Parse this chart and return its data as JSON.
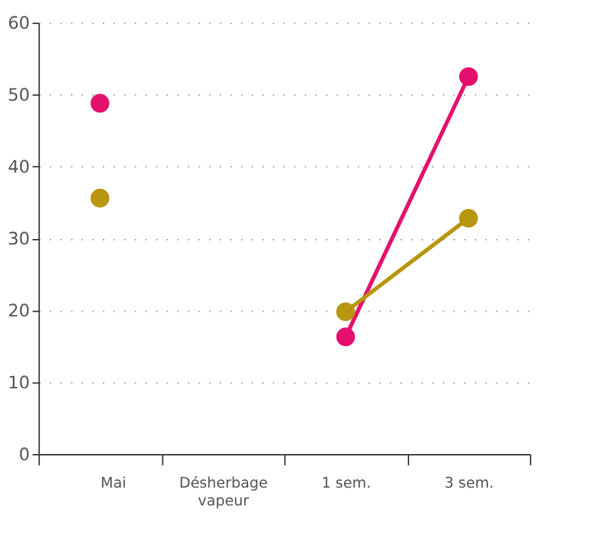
{
  "chart_data": {
    "type": "line",
    "categories": [
      "Mai",
      "Désherbage vapeur",
      "1 sem.",
      "3 sem."
    ],
    "series": [
      {
        "color": "#e5106e",
        "values": [
          48.8,
          null,
          16.3,
          52.5
        ]
      },
      {
        "color": "#b8960f",
        "values": [
          35.6,
          null,
          19.8,
          32.8
        ]
      }
    ],
    "ylim": [
      0,
      60
    ],
    "yticks": [
      0,
      10,
      20,
      30,
      40,
      50,
      60
    ],
    "grid": "y",
    "marker": "circle",
    "line_style": "solid",
    "legend": false
  }
}
